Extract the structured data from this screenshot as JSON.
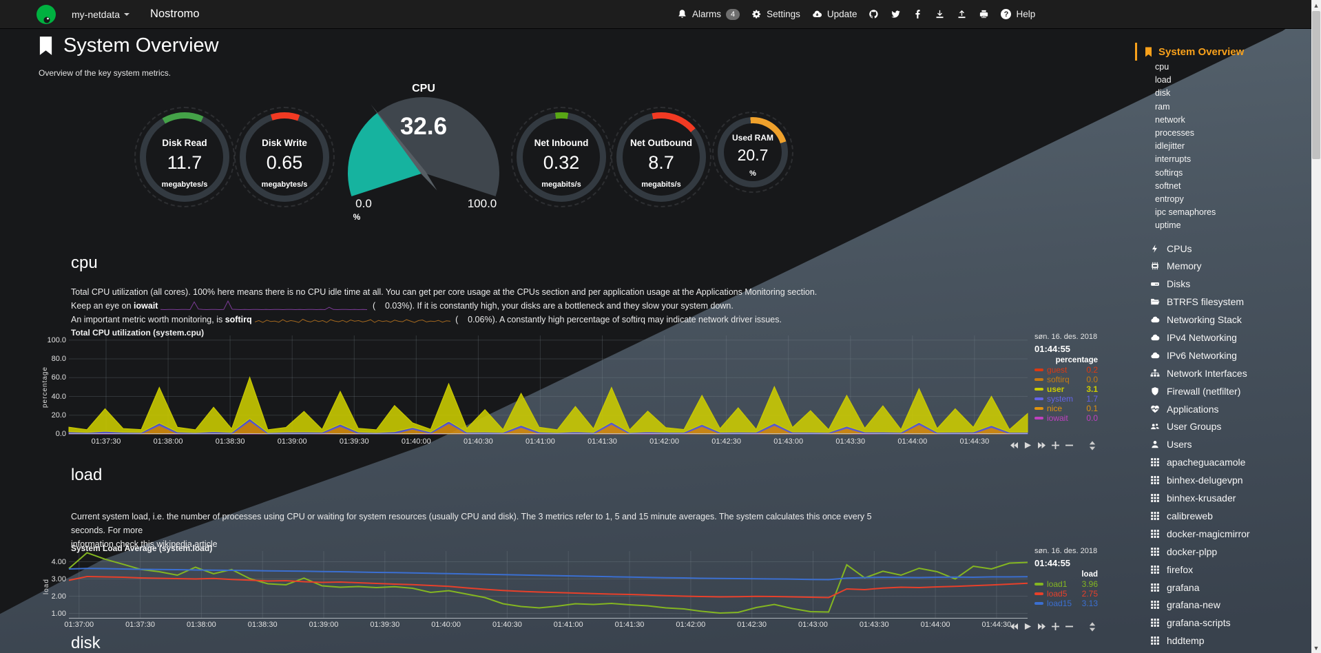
{
  "navbar": {
    "brand_menu": "my-netdata",
    "hostname": "Nostromo",
    "alarms_label": "Alarms",
    "alarms_count": "4",
    "settings_label": "Settings",
    "update_label": "Update",
    "help_label": "Help"
  },
  "page": {
    "title": "System Overview",
    "subtitle": "Overview of the key system metrics."
  },
  "gauges": [
    {
      "title": "Disk Read",
      "value": "11.7",
      "unit": "megabytes/s",
      "color": "#44a248"
    },
    {
      "title": "Disk Write",
      "value": "0.65",
      "unit": "megabytes/s",
      "color": "#f23a23"
    },
    {
      "title": "Net Inbound",
      "value": "0.32",
      "unit": "megabits/s",
      "color": "#59a815"
    },
    {
      "title": "Net Outbound",
      "value": "8.7",
      "unit": "megabits/s",
      "color": "#f23a23"
    },
    {
      "title": "Used RAM",
      "value": "20.7",
      "unit": "%",
      "color": "#efa12c"
    }
  ],
  "cpu_gauge": {
    "title": "CPU",
    "value": "32.6",
    "min": "0.0",
    "max": "100.0",
    "unit": "%",
    "percent": 32.6,
    "fill_color": "#16b39f",
    "back_color": "#3f464d",
    "needle_color": "#575e64"
  },
  "sections": {
    "cpu": {
      "heading": "cpu",
      "line1": "Total CPU utilization (all cores). 100% here means there is no CPU idle time at all. You can get per core usage at the CPUs section and per application usage at the Applications Monitoring section.",
      "line2_prefix": "Keep an eye on ",
      "line2_bold": "iowait",
      "line2_suffix": " (    0.03%). If it is constantly high, your disks are a bottleneck and they slow your system down.",
      "line3_prefix": "An important metric worth monitoring, is ",
      "line3_bold": "softirq",
      "line3_suffix": " (    0.06%). A constantly high percentage of softirq may indicate network driver issues."
    },
    "load": {
      "heading": "load",
      "line1": "Current system load, i.e. the number of processes using CPU or waiting for system resources (usually CPU and disk). The 3 metrics refer to 1, 5 and 15 minute averages. The system calculates this once every 5 seconds. For more",
      "line2": "information check this wikipedia article"
    },
    "disk": {
      "heading": "disk"
    }
  },
  "chart_data": {
    "cpu": {
      "type": "area",
      "title": "Total CPU utilization (system.cpu)",
      "ylabel": "percentage",
      "date": "søn. 16. des. 2018",
      "time": "01:44:55",
      "legend_header": "percentage",
      "ylim": [
        0,
        100
      ],
      "yticks": [
        "0.0",
        "20.0",
        "40.0",
        "60.0",
        "80.0",
        "100.0"
      ],
      "ytick_values": [
        0,
        20,
        40,
        60,
        80,
        100
      ],
      "xticks": [
        "01:37:30",
        "01:38:00",
        "01:38:30",
        "01:39:00",
        "01:39:30",
        "01:40:00",
        "01:40:30",
        "01:41:00",
        "01:41:30",
        "01:42:00",
        "01:42:30",
        "01:43:00",
        "01:43:30",
        "01:44:00",
        "01:44:30"
      ],
      "stack": [
        "iowait",
        "nice",
        "system",
        "user"
      ],
      "colors": {
        "iowait": "#bf40bf",
        "nice": "#d98d0d",
        "system": "#5b5bd6",
        "user": "#cdcd00"
      },
      "series": {
        "user": [
          5,
          3,
          24,
          4,
          3,
          38,
          5,
          3,
          26,
          4,
          44,
          3,
          5,
          22,
          3,
          35,
          4,
          3,
          28,
          5,
          3,
          40,
          4,
          24,
          3,
          34,
          5,
          3,
          27,
          4,
          37,
          3,
          22,
          5,
          3,
          31,
          4,
          26,
          3,
          39,
          5,
          23,
          3,
          33,
          4,
          28,
          3,
          36,
          4,
          25,
          5,
          31,
          3,
          20
        ],
        "system": [
          2,
          1.6,
          2.4,
          1.8,
          1.5,
          2.6,
          1.7,
          1.5,
          2.2,
          1.6,
          2.8,
          1.5,
          1.8,
          2.1,
          1.5,
          2.4,
          1.7,
          1.5,
          2.2,
          1.8,
          1.5,
          2.6,
          1.6,
          2,
          1.5,
          2.3,
          1.7,
          1.5,
          2.1,
          1.6,
          2.4,
          1.5,
          1.9,
          1.8,
          1.5,
          2.2,
          1.6,
          2,
          1.5,
          2.5,
          1.7,
          1.9,
          1.5,
          2.2,
          1.6,
          2.1,
          1.5,
          2.3,
          1.6,
          1.9,
          1.7,
          2.2,
          1.5,
          1.8
        ],
        "nice": [
          0,
          0,
          0,
          0,
          0,
          9,
          0,
          0,
          0,
          0,
          13,
          0,
          0,
          0,
          0,
          8,
          0,
          0,
          0,
          5,
          0,
          11,
          0,
          0,
          0,
          7,
          0,
          0,
          0,
          0,
          10,
          0,
          0,
          0,
          0,
          8,
          0,
          0,
          0,
          9,
          0,
          0,
          0,
          6,
          0,
          0,
          0,
          10,
          0,
          0,
          0,
          7,
          0,
          0
        ],
        "iowait": [
          0.3,
          0,
          0.5,
          0,
          0.2,
          0,
          0.4,
          0,
          0.3,
          0,
          0.6,
          0,
          0.2,
          0,
          0.4,
          0,
          0.3,
          0,
          0.2,
          0,
          0.5,
          0,
          0.3,
          0,
          0.2,
          0,
          0.4,
          0,
          0.3,
          0,
          0.2,
          0,
          0.5,
          0,
          0.3,
          0,
          0.2,
          0,
          0.4,
          0,
          0.3,
          0,
          0.2,
          0,
          0.5,
          0,
          0.3,
          0,
          0.2,
          0,
          0.4,
          0,
          0.3,
          0
        ]
      },
      "legend": [
        {
          "name": "guest",
          "value": "0.2",
          "color": "#dc3912"
        },
        {
          "name": "softirq",
          "value": "0.0",
          "color": "#c77b11"
        },
        {
          "name": "user",
          "value": "3.1",
          "color": "#cdcd00",
          "bold": true
        },
        {
          "name": "system",
          "value": "1.7",
          "color": "#6464e8"
        },
        {
          "name": "nice",
          "value": "0.1",
          "color": "#e0920f"
        },
        {
          "name": "iowait",
          "value": "0.0",
          "color": "#bf40bf"
        }
      ]
    },
    "load": {
      "type": "line",
      "title": "System Load Average (system.load)",
      "ylabel": "load",
      "date": "søn. 16. des. 2018",
      "time": "01:44:55",
      "legend_header": "load",
      "ylim": [
        1,
        4
      ],
      "yticks": [
        "1.00",
        "2.00",
        "3.00",
        "4.00"
      ],
      "ytick_values": [
        1,
        2,
        3,
        4
      ],
      "xticks": [
        "01:37:00",
        "01:37:30",
        "01:38:00",
        "01:38:30",
        "01:39:00",
        "01:39:30",
        "01:40:00",
        "01:40:30",
        "01:41:00",
        "01:41:30",
        "01:42:00",
        "01:42:30",
        "01:43:00",
        "01:43:30",
        "01:44:00",
        "01:44:30"
      ],
      "series": [
        {
          "name": "load1",
          "color": "#84b621",
          "values": [
            3.6,
            4.52,
            4.15,
            3.85,
            3.55,
            3.42,
            3.22,
            3.68,
            3.3,
            3.55,
            3.02,
            2.72,
            2.66,
            3.05,
            2.6,
            2.52,
            2.56,
            2.5,
            2.55,
            2.46,
            2.22,
            2.32,
            2.12,
            1.92,
            1.56,
            1.4,
            1.32,
            1.42,
            1.56,
            1.52,
            1.58,
            1.5,
            1.44,
            1.32,
            1.26,
            1.12,
            1.02,
            1.06,
            1.34,
            1.52,
            1.28,
            1.1,
            1.08,
            3.82,
            3.06,
            3.45,
            3.22,
            3.62,
            3.42,
            3.0,
            3.74,
            3.58,
            3.92,
            3.96
          ]
        },
        {
          "name": "load5",
          "color": "#e8402a",
          "values": [
            2.92,
            3.14,
            3.12,
            3.1,
            3.06,
            3.04,
            3.02,
            3.0,
            3.03,
            2.97,
            2.93,
            2.88,
            2.9,
            2.84,
            2.8,
            2.82,
            2.78,
            2.74,
            2.7,
            2.67,
            2.62,
            2.57,
            2.48,
            2.4,
            2.33,
            2.28,
            2.24,
            2.21,
            2.18,
            2.15,
            2.12,
            2.1,
            2.07,
            2.03,
            2.0,
            1.98,
            1.96,
            1.97,
            1.99,
            1.98,
            1.96,
            1.94,
            1.92,
            2.42,
            2.38,
            2.47,
            2.52,
            2.5,
            2.54,
            2.57,
            2.61,
            2.65,
            2.7,
            2.75
          ]
        },
        {
          "name": "load15",
          "color": "#3b6fd1",
          "values": [
            3.58,
            3.61,
            3.6,
            3.58,
            3.56,
            3.55,
            3.54,
            3.52,
            3.51,
            3.5,
            3.49,
            3.47,
            3.46,
            3.45,
            3.43,
            3.42,
            3.4,
            3.38,
            3.37,
            3.35,
            3.33,
            3.31,
            3.29,
            3.27,
            3.25,
            3.23,
            3.21,
            3.19,
            3.17,
            3.15,
            3.13,
            3.11,
            3.09,
            3.07,
            3.06,
            3.04,
            3.03,
            3.02,
            3.01,
            3.0,
            2.99,
            2.97,
            2.96,
            3.05,
            3.08,
            3.1,
            3.09,
            3.08,
            3.1,
            3.11,
            3.1,
            3.12,
            3.12,
            3.13
          ]
        }
      ],
      "legend": [
        {
          "name": "load1",
          "value": "3.96",
          "color": "#84b621"
        },
        {
          "name": "load5",
          "value": "2.75",
          "color": "#e8402a"
        },
        {
          "name": "load15",
          "value": "3.13",
          "color": "#3b6fd1"
        }
      ]
    },
    "iowait_sparkline": {
      "type": "line",
      "color": "#7d3c98",
      "values": [
        0.05,
        0.04,
        0.06,
        0.05,
        0.04,
        0.05,
        0.06,
        0.04,
        0.9,
        0.1,
        0.05,
        0.04,
        0.05,
        0.06,
        0.04,
        0.05,
        1.0,
        0.08,
        0.05,
        0.04,
        0.05,
        0.04,
        0.06,
        0.05,
        0.04,
        0.05,
        0.04,
        0.06,
        0.05,
        0.04,
        0.05,
        0.06,
        0.04,
        0.05,
        0.04,
        0.05,
        0.06,
        0.04,
        0.05,
        0.04,
        0.3,
        0.05,
        0.04,
        0.05,
        0.06,
        0.04,
        0.05,
        0.04,
        0.05,
        0.04
      ]
    },
    "softirq_sparkline": {
      "type": "line",
      "color": "#a5691f",
      "values": [
        0.2,
        0.35,
        0.15,
        0.4,
        0.25,
        0.3,
        0.18,
        0.45,
        0.22,
        0.35,
        0.28,
        0.15,
        0.5,
        0.3,
        0.2,
        0.4,
        0.25,
        0.35,
        0.15,
        0.45,
        0.3,
        0.22,
        0.38,
        0.18,
        0.42,
        0.28,
        0.35,
        0.2,
        0.3,
        0.45,
        0.15,
        0.38,
        0.25,
        0.32,
        0.18,
        0.4,
        0.28,
        0.22,
        0.45,
        0.3,
        0.15,
        0.35,
        0.42,
        0.2,
        0.3,
        0.25,
        0.38,
        0.18,
        0.32,
        0.28
      ]
    }
  },
  "sidebar": {
    "active": {
      "label": "System Overview",
      "icon": "bookmark"
    },
    "sub_items": [
      "cpu",
      "load",
      "disk",
      "ram",
      "network",
      "processes",
      "idlejitter",
      "interrupts",
      "softirqs",
      "softnet",
      "entropy",
      "ipc semaphores",
      "uptime"
    ],
    "items": [
      {
        "icon": "bolt",
        "label": "CPUs"
      },
      {
        "icon": "memory",
        "label": "Memory"
      },
      {
        "icon": "hdd",
        "label": "Disks"
      },
      {
        "icon": "folder",
        "label": "BTRFS filesystem"
      },
      {
        "icon": "cloud",
        "label": "Networking Stack"
      },
      {
        "icon": "cloud",
        "label": "IPv4 Networking"
      },
      {
        "icon": "cloud",
        "label": "IPv6 Networking"
      },
      {
        "icon": "sitemap",
        "label": "Network Interfaces"
      },
      {
        "icon": "shield",
        "label": "Firewall (netfilter)"
      },
      {
        "icon": "apps",
        "label": "Applications"
      },
      {
        "icon": "users",
        "label": "User Groups"
      },
      {
        "icon": "user",
        "label": "Users"
      },
      {
        "icon": "grid",
        "label": "apacheguacamole"
      },
      {
        "icon": "grid",
        "label": "binhex-delugevpn"
      },
      {
        "icon": "grid",
        "label": "binhex-krusader"
      },
      {
        "icon": "grid",
        "label": "calibreweb"
      },
      {
        "icon": "grid",
        "label": "docker-magicmirror"
      },
      {
        "icon": "grid",
        "label": "docker-plpp"
      },
      {
        "icon": "grid",
        "label": "firefox"
      },
      {
        "icon": "grid",
        "label": "grafana"
      },
      {
        "icon": "grid",
        "label": "grafana-new"
      },
      {
        "icon": "grid",
        "label": "grafana-scripts"
      },
      {
        "icon": "grid",
        "label": "hddtemp"
      }
    ]
  },
  "colors": {
    "accent": "#f9a11b",
    "background_dark": "#17181a",
    "background_light": "#49545f"
  }
}
